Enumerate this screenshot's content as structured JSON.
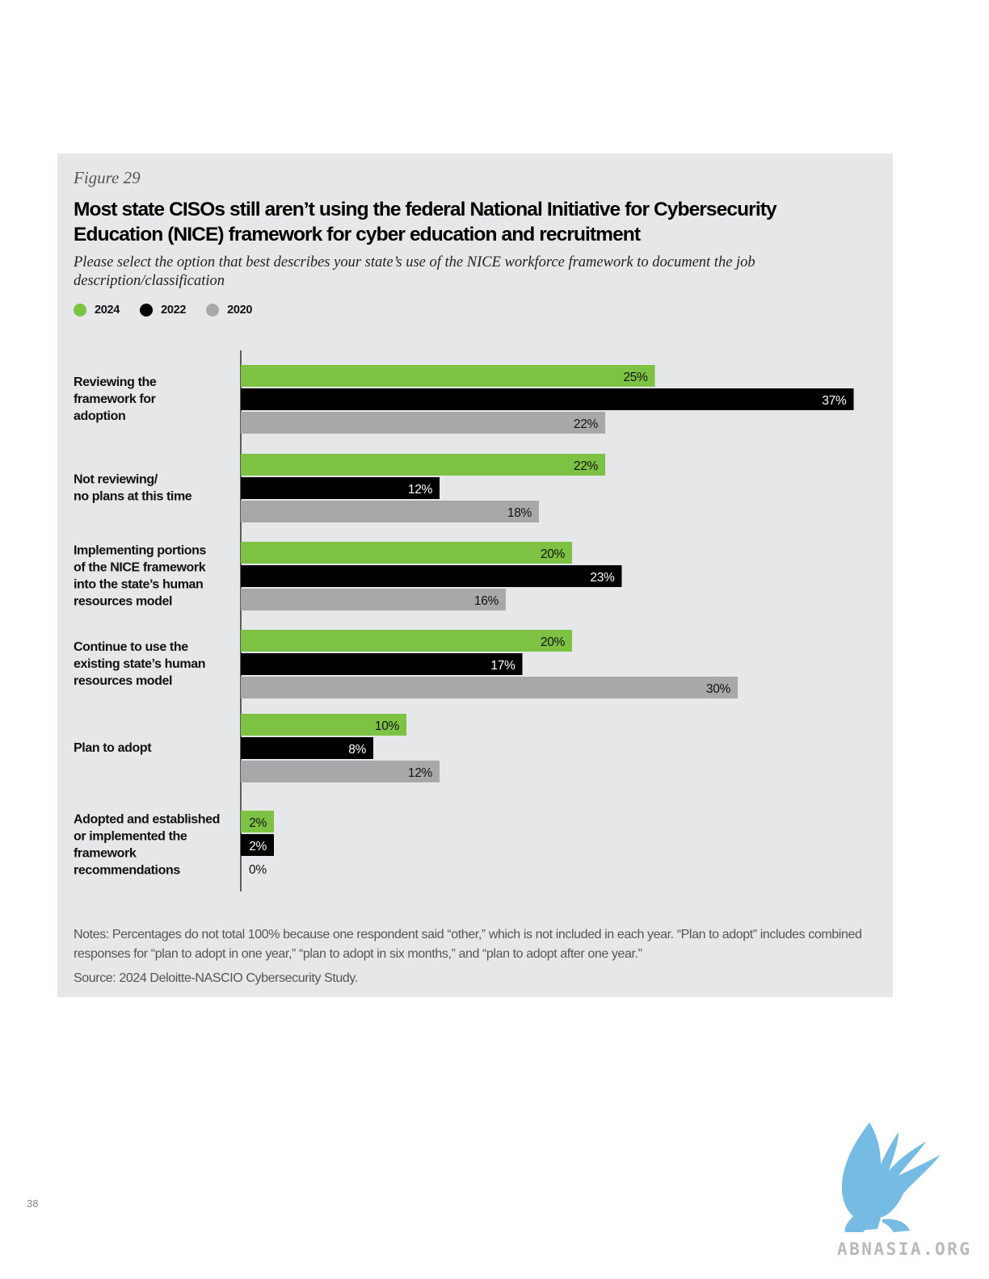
{
  "figure_label": "Figure 29",
  "title": "Most state CISOs still aren’t using the federal National Initiative for Cybersecurity Education (NICE) framework for cyber education and recruitment",
  "subtitle": "Please select the option that best describes your state’s use of the NICE workforce framework to document the job description/classification",
  "legend": [
    {
      "label": "2024",
      "color": "#7dc242"
    },
    {
      "label": "2022",
      "color": "#000000"
    },
    {
      "label": "2020",
      "color": "#a7a8aa"
    }
  ],
  "chart_data": {
    "type": "bar",
    "orientation": "horizontal",
    "title": "Most state CISOs still aren’t using the federal National Initiative for Cybersecurity Education (NICE) framework for cyber education and recruitment",
    "categories": [
      [
        "Reviewing the",
        "framework for",
        "adoption"
      ],
      [
        "Not reviewing/",
        "no plans at this time"
      ],
      [
        "Implementing portions",
        "of the NICE framework",
        "into the state’s human",
        "resources model"
      ],
      [
        "Continue to use the",
        "existing state’s human",
        "resources model"
      ],
      [
        "Plan to adopt"
      ],
      [
        "Adopted and established",
        "or implemented the",
        "framework",
        "recommendations"
      ]
    ],
    "series": [
      {
        "name": "2024",
        "color": "#7dc242",
        "values": [
          25,
          22,
          20,
          20,
          10,
          2
        ]
      },
      {
        "name": "2022",
        "color": "#000000",
        "values": [
          37,
          12,
          23,
          17,
          8,
          2
        ]
      },
      {
        "name": "2020",
        "color": "#a7a8aa",
        "values": [
          22,
          18,
          16,
          30,
          12,
          0
        ]
      }
    ],
    "value_suffix": "%",
    "xlim": [
      0,
      37
    ],
    "grid": false,
    "legend_position": "top-left"
  },
  "notes": "Notes: Percentages do not total 100% because one respondent said “other,” which is not included in each year. “Plan to adopt” includes combined responses for “plan to adopt in one year,” “plan to adopt in six months,” and “plan to adopt after one year.”",
  "source": "Source: 2024 Deloitte-NASCIO Cybersecurity Study.",
  "page_number": "38",
  "watermark": "ABNASIA.ORG"
}
